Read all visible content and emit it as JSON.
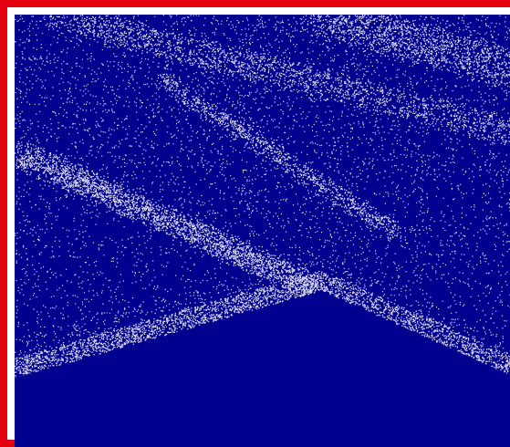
{
  "image": {
    "kind": "point-cloud-render",
    "colors": {
      "border": "#e4000f",
      "background": "#00008f",
      "points": "#ffffff"
    }
  }
}
